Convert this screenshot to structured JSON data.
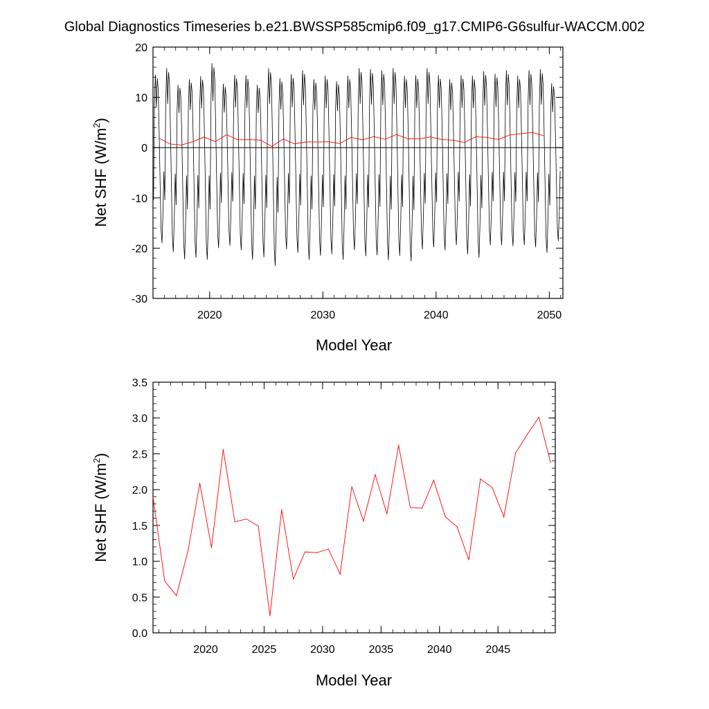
{
  "title": "Global Diagnostics Timeseries b.e21.BWSSP585cmip6.f09_g17.CMIP6-G6sulfur-WACCM.002",
  "colors": {
    "monthly_line": "#000000",
    "annual_line": "#ff0000",
    "zero_line": "#000000"
  },
  "chart_data": [
    {
      "type": "line",
      "xlabel": "Model Year",
      "ylabel": "Net SHF (W/m²)",
      "ylabel_main": "Net SHF (W/m",
      "ylabel_sup": "2",
      "ylabel_close": ")",
      "xlim": [
        2015,
        2051.2
      ],
      "ylim": [
        -30,
        20
      ],
      "x_ticks": [
        2020,
        2030,
        2040,
        2050
      ],
      "x_tick_labels": [
        "2020",
        "2030",
        "2040",
        "2050"
      ],
      "y_ticks": [
        -30,
        -20,
        -10,
        0,
        10,
        20
      ],
      "y_tick_labels": [
        "-30",
        "-20",
        "-10",
        "0",
        "10",
        "20"
      ],
      "reference_line_y": 0,
      "monthly_series": {
        "years": [
          2015,
          2016,
          2017,
          2018,
          2019,
          2020,
          2021,
          2022,
          2023,
          2024,
          2025,
          2026,
          2027,
          2028,
          2029,
          2030,
          2031,
          2032,
          2033,
          2034,
          2035,
          2036,
          2037,
          2038,
          2039,
          2040,
          2041,
          2042,
          2043,
          2044,
          2045,
          2046,
          2047,
          2048,
          2049,
          2050
        ],
        "annual_max": [
          14.5,
          15.8,
          12.5,
          13.6,
          14.2,
          16.8,
          12.7,
          14.5,
          14.4,
          12.5,
          15.8,
          13.8,
          14.6,
          15.4,
          13.6,
          14.3,
          13.2,
          14.3,
          15.8,
          15.6,
          15.4,
          15.8,
          14.3,
          14.4,
          15.8,
          14.4,
          13.6,
          14.4,
          14.3,
          15.2,
          14.7,
          15.4,
          14.3,
          15.4,
          15.6,
          12.8
        ],
        "annual_min": [
          -19.0,
          -20.8,
          -22.2,
          -21.9,
          -22.3,
          -20.0,
          -19.5,
          -20.4,
          -22.3,
          -21.8,
          -23.5,
          -20.2,
          -20.9,
          -22.3,
          -21.5,
          -21.2,
          -22.3,
          -20.4,
          -21.6,
          -21.4,
          -22.4,
          -21.5,
          -22.6,
          -20.2,
          -19.8,
          -20.4,
          -19.4,
          -21.2,
          -21.9,
          -19.4,
          -19.4,
          -19.6,
          -19.4,
          -19.8,
          -20.9,
          -18.6
        ]
      },
      "series": [
        {
          "x": [
            2015.5,
            2016.5,
            2017.5,
            2018.5,
            2019.5,
            2020.5,
            2021.5,
            2022.5,
            2023.5,
            2024.5,
            2025.5,
            2026.5,
            2027.5,
            2028.5,
            2029.5,
            2030.5,
            2031.5,
            2032.5,
            2033.5,
            2034.5,
            2035.5,
            2036.5,
            2037.5,
            2038.5,
            2039.5,
            2040.5,
            2041.5,
            2042.5,
            2043.5,
            2044.5,
            2045.5,
            2046.5,
            2047.5,
            2048.5,
            2049.5
          ],
          "values": [
            1.9,
            0.72,
            0.52,
            1.15,
            2.09,
            1.19,
            2.56,
            1.55,
            1.59,
            1.49,
            0.24,
            1.72,
            0.75,
            1.13,
            1.12,
            1.17,
            0.82,
            2.04,
            1.56,
            2.21,
            1.66,
            2.62,
            1.75,
            1.74,
            2.13,
            1.62,
            1.48,
            1.02,
            2.15,
            2.03,
            1.62,
            2.51,
            2.77,
            3.01,
            2.38
          ]
        }
      ]
    },
    {
      "type": "line",
      "xlabel": "Model Year",
      "ylabel": "Net SHF (W/m²)",
      "ylabel_main": "Net SHF (W/m",
      "ylabel_sup": "2",
      "ylabel_close": ")",
      "xlim": [
        2015.5,
        2049.9
      ],
      "ylim": [
        0.0,
        3.5
      ],
      "x_ticks": [
        2020,
        2025,
        2030,
        2035,
        2040,
        2045
      ],
      "x_tick_labels": [
        "2020",
        "2025",
        "2030",
        "2035",
        "2040",
        "2045"
      ],
      "y_ticks": [
        0.0,
        0.5,
        1.0,
        1.5,
        2.0,
        2.5,
        3.0,
        3.5
      ],
      "y_tick_labels": [
        "0.0",
        "0.5",
        "1.0",
        "1.5",
        "2.0",
        "2.5",
        "3.0",
        "3.5"
      ],
      "series": [
        {
          "x": [
            2015.5,
            2016.5,
            2017.5,
            2018.5,
            2019.5,
            2020.5,
            2021.5,
            2022.5,
            2023.5,
            2024.5,
            2025.5,
            2026.5,
            2027.5,
            2028.5,
            2029.5,
            2030.5,
            2031.5,
            2032.5,
            2033.5,
            2034.5,
            2035.5,
            2036.5,
            2037.5,
            2038.5,
            2039.5,
            2040.5,
            2041.5,
            2042.5,
            2043.5,
            2044.5,
            2045.5,
            2046.5,
            2047.5,
            2048.5,
            2049.5
          ],
          "values": [
            1.9,
            0.72,
            0.52,
            1.15,
            2.09,
            1.19,
            2.56,
            1.55,
            1.59,
            1.49,
            0.24,
            1.72,
            0.75,
            1.13,
            1.12,
            1.17,
            0.82,
            2.04,
            1.56,
            2.21,
            1.66,
            2.62,
            1.75,
            1.74,
            2.13,
            1.62,
            1.48,
            1.02,
            2.15,
            2.03,
            1.62,
            2.51,
            2.77,
            3.01,
            2.38
          ]
        }
      ]
    }
  ]
}
